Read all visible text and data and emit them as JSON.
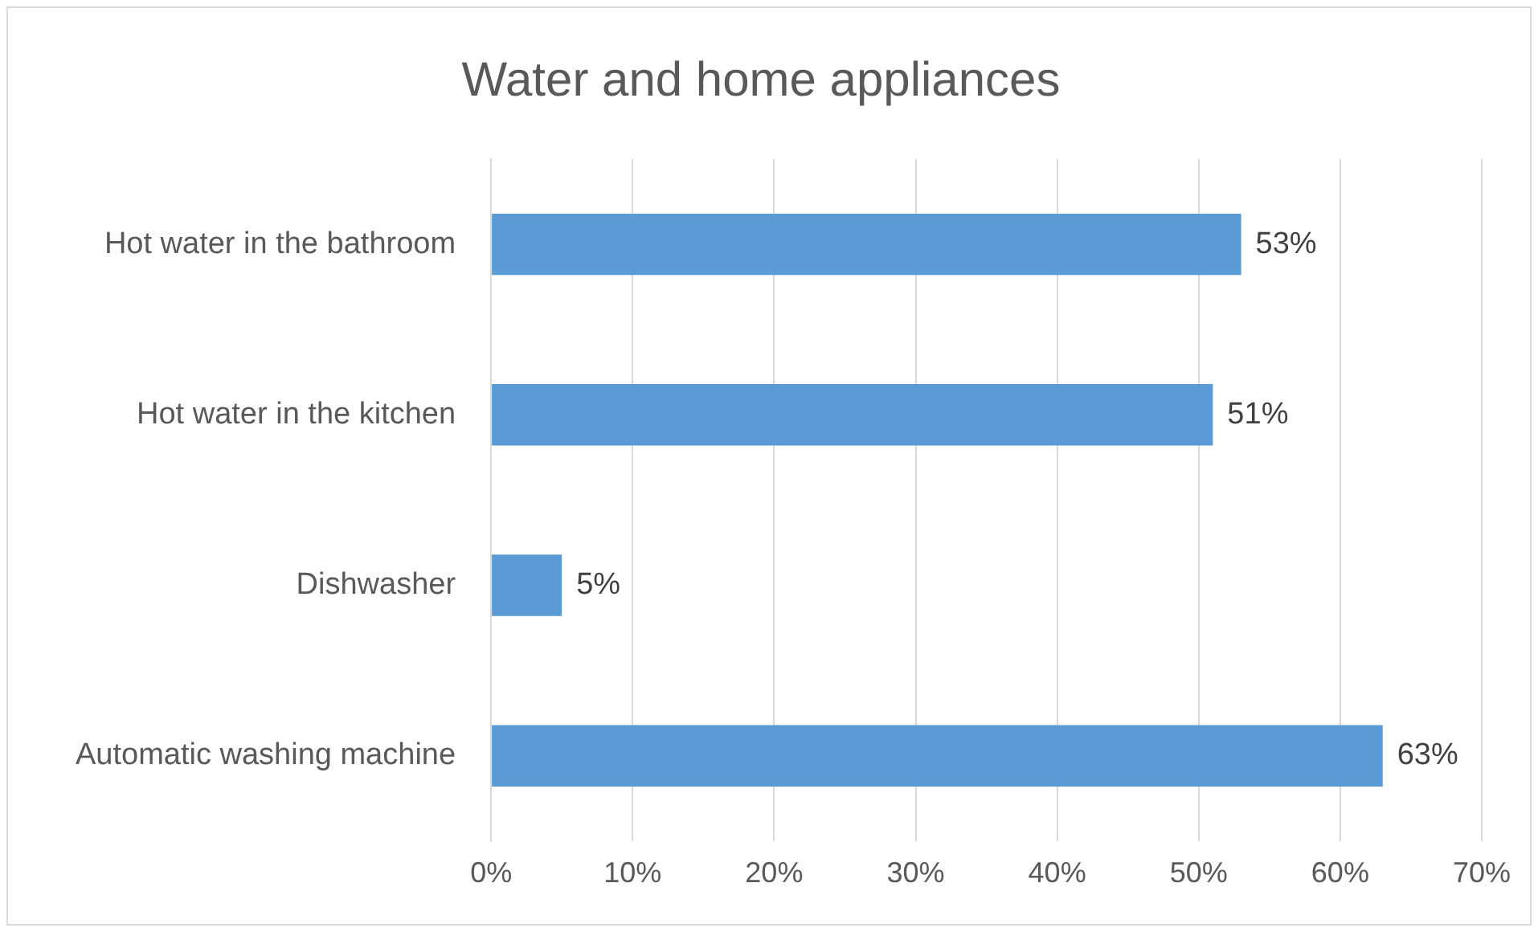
{
  "chart_data": {
    "type": "bar",
    "orientation": "horizontal",
    "title": "Water and home appliances",
    "categories": [
      "Hot water in the bathroom",
      "Hot water in the kitchen",
      "Dishwasher",
      "Automatic washing machine"
    ],
    "values": [
      53,
      51,
      5,
      63
    ],
    "color": "#5b9bd5",
    "value_labels": [
      "53%",
      "51%",
      "5%",
      "63%"
    ],
    "xlim": [
      0,
      70
    ],
    "xticks": [
      {
        "value": 0,
        "label": "0%"
      },
      {
        "value": 10,
        "label": "10%"
      },
      {
        "value": 20,
        "label": "20%"
      },
      {
        "value": 30,
        "label": "30%"
      },
      {
        "value": 40,
        "label": "40%"
      },
      {
        "value": 50,
        "label": "50%"
      },
      {
        "value": 60,
        "label": "60%"
      },
      {
        "value": 70,
        "label": "70%"
      }
    ],
    "grid": "x",
    "legend": false
  }
}
